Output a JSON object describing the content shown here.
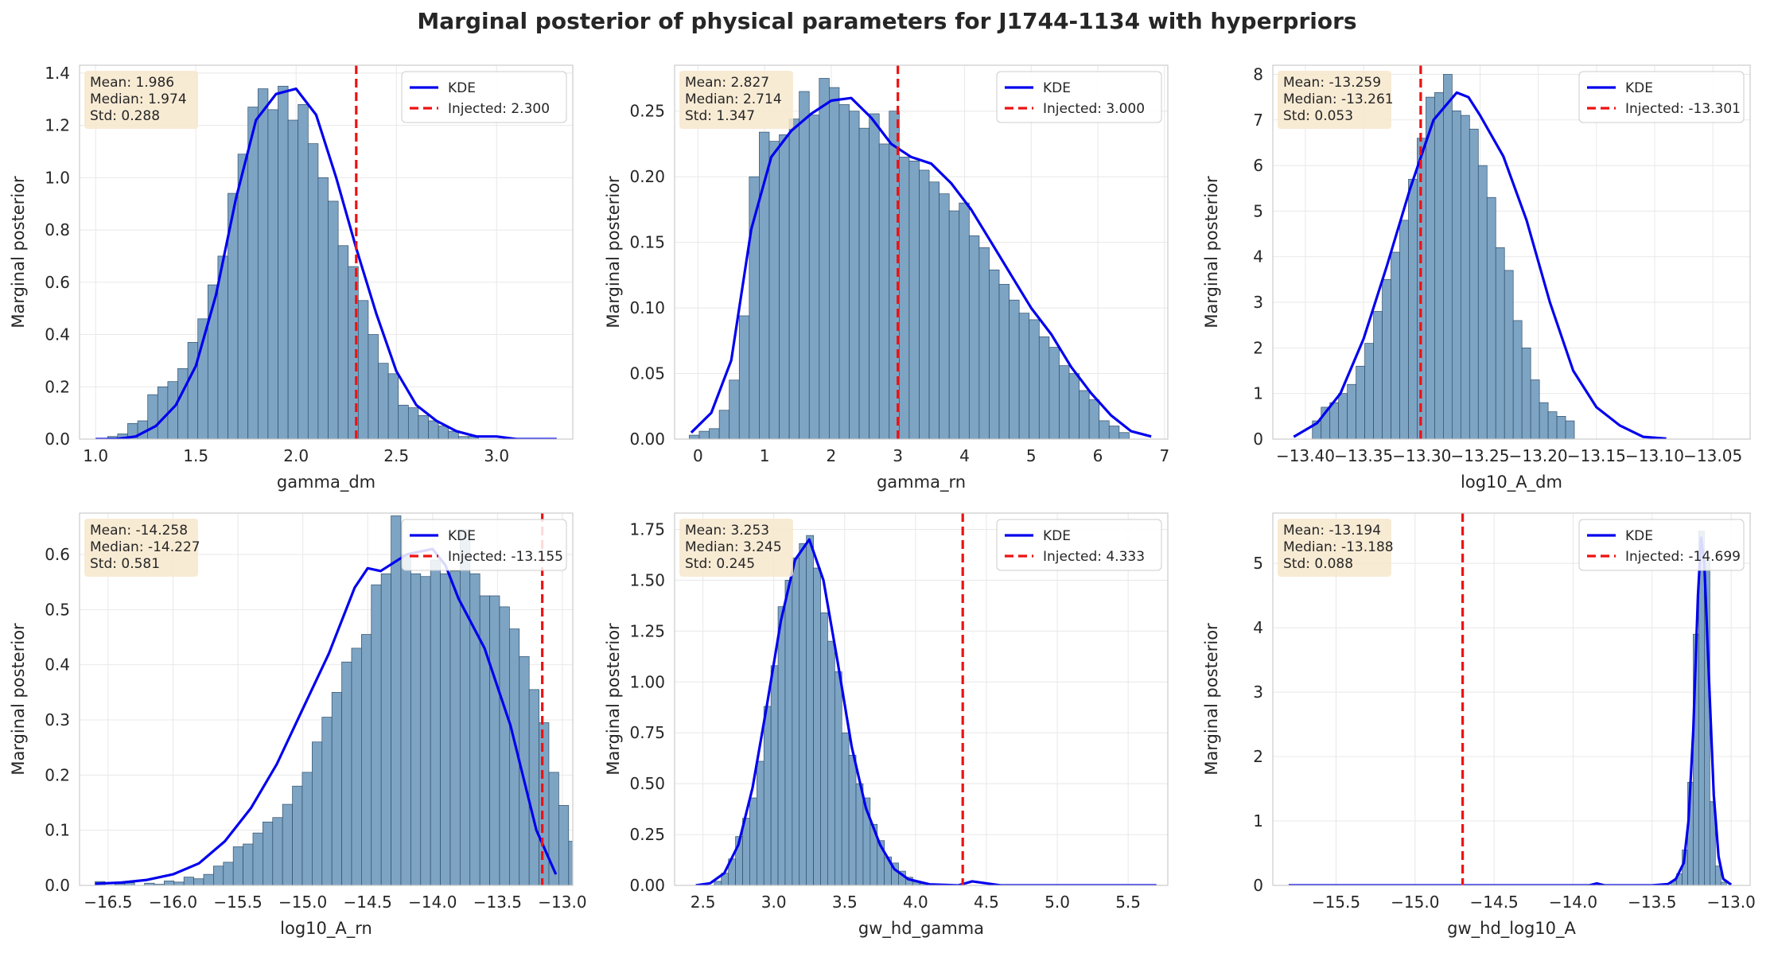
{
  "figure": {
    "title": "Marginal posterior of physical parameters for J1744-1134 with hyperpriors"
  },
  "style": {
    "hist_fill": "#7ea4c4",
    "hist_edge": "#2f4f6a",
    "kde_color": "#0000ee",
    "injected_color": "#ee1111",
    "stats_box_fill": "#f7e8cc"
  },
  "chart_data": [
    {
      "type": "bar",
      "title": "",
      "xlabel": "gamma_dm",
      "ylabel": "Marginal posterior",
      "xlim": [
        0.92,
        3.38
      ],
      "ylim": [
        0,
        1.43
      ],
      "xticks": [
        1.0,
        1.5,
        2.0,
        2.5,
        3.0
      ],
      "xtick_labels": [
        "1.0",
        "1.5",
        "2.0",
        "2.5",
        "3.0"
      ],
      "yticks": [
        0,
        0.2,
        0.4,
        0.6,
        0.8,
        1.0,
        1.2,
        1.4
      ],
      "ytick_labels": [
        "0.0",
        "0.2",
        "0.4",
        "0.6",
        "0.8",
        "1.0",
        "1.2",
        "1.4"
      ],
      "grid": true,
      "legend": "top-right",
      "legend_entries": [
        "KDE",
        "Injected: 2.300"
      ],
      "stats": [
        "Mean: 1.986",
        "Median: 1.974",
        "Std: 0.288"
      ],
      "injected": 2.3,
      "hist": {
        "start": 1.06,
        "width": 0.05,
        "values": [
          0.01,
          0.02,
          0.06,
          0.07,
          0.17,
          0.2,
          0.22,
          0.27,
          0.37,
          0.46,
          0.59,
          0.7,
          0.94,
          1.09,
          1.27,
          1.34,
          1.26,
          1.35,
          1.22,
          1.28,
          1.13,
          1.0,
          0.91,
          0.74,
          0.66,
          0.53,
          0.4,
          0.29,
          0.25,
          0.13,
          0.12,
          0.09,
          0.07,
          0.05,
          0.03,
          0.01,
          0.01
        ]
      },
      "kde": {
        "x": [
          1.0,
          1.1,
          1.2,
          1.3,
          1.4,
          1.5,
          1.6,
          1.7,
          1.8,
          1.9,
          2.0,
          2.1,
          2.2,
          2.3,
          2.4,
          2.5,
          2.6,
          2.7,
          2.8,
          2.9,
          3.0,
          3.1,
          3.2,
          3.3
        ],
        "y": [
          0.0,
          0.0,
          0.01,
          0.05,
          0.13,
          0.28,
          0.55,
          0.92,
          1.22,
          1.32,
          1.34,
          1.24,
          1.0,
          0.73,
          0.48,
          0.26,
          0.13,
          0.07,
          0.03,
          0.01,
          0.01,
          0.0,
          0.0,
          0.0
        ]
      }
    },
    {
      "type": "bar",
      "title": "",
      "xlabel": "gamma_rn",
      "ylabel": "Marginal posterior",
      "xlim": [
        -0.35,
        7.05
      ],
      "ylim": [
        0,
        0.285
      ],
      "xticks": [
        0,
        1,
        2,
        3,
        4,
        5,
        6,
        7
      ],
      "xtick_labels": [
        "0",
        "1",
        "2",
        "3",
        "4",
        "5",
        "6",
        "7"
      ],
      "yticks": [
        0,
        0.05,
        0.1,
        0.15,
        0.2,
        0.25
      ],
      "ytick_labels": [
        "0.00",
        "0.05",
        "0.10",
        "0.15",
        "0.20",
        "0.25"
      ],
      "grid": true,
      "legend": "top-right",
      "legend_entries": [
        "KDE",
        "Injected: 3.000"
      ],
      "stats": [
        "Mean: 2.827",
        "Median: 2.714",
        "Std: 1.347"
      ],
      "injected": 3.0,
      "hist": {
        "start": -0.13,
        "width": 0.15,
        "values": [
          0.003,
          0.006,
          0.008,
          0.022,
          0.045,
          0.094,
          0.2,
          0.234,
          0.227,
          0.232,
          0.244,
          0.265,
          0.247,
          0.275,
          0.268,
          0.255,
          0.25,
          0.237,
          0.248,
          0.225,
          0.25,
          0.215,
          0.212,
          0.205,
          0.196,
          0.187,
          0.174,
          0.18,
          0.155,
          0.146,
          0.129,
          0.118,
          0.106,
          0.096,
          0.091,
          0.078,
          0.07,
          0.056,
          0.05,
          0.037,
          0.03,
          0.014,
          0.01,
          0.005
        ]
      },
      "kde": {
        "x": [
          -0.1,
          0.2,
          0.5,
          0.8,
          1.1,
          1.4,
          1.7,
          2.0,
          2.3,
          2.6,
          2.9,
          3.2,
          3.5,
          3.8,
          4.1,
          4.4,
          4.7,
          5.0,
          5.3,
          5.6,
          5.9,
          6.2,
          6.5,
          6.8
        ],
        "y": [
          0.005,
          0.02,
          0.06,
          0.16,
          0.215,
          0.235,
          0.248,
          0.258,
          0.26,
          0.245,
          0.225,
          0.215,
          0.21,
          0.195,
          0.175,
          0.15,
          0.125,
          0.1,
          0.08,
          0.055,
          0.035,
          0.018,
          0.006,
          0.002
        ]
      }
    },
    {
      "type": "bar",
      "title": "",
      "xlabel": "log10_A_dm",
      "ylabel": "Marginal posterior",
      "xlim": [
        -13.428,
        -13.018
      ],
      "ylim": [
        0,
        8.2
      ],
      "xticks": [
        -13.4,
        -13.35,
        -13.3,
        -13.25,
        -13.2,
        -13.15,
        -13.1,
        -13.05
      ],
      "xtick_labels": [
        "−13.40",
        "−13.35",
        "−13.30",
        "−13.25",
        "−13.20",
        "−13.15",
        "−13.10",
        "−13.05"
      ],
      "yticks": [
        0,
        1,
        2,
        3,
        4,
        5,
        6,
        7,
        8
      ],
      "ytick_labels": [
        "0",
        "1",
        "2",
        "3",
        "4",
        "5",
        "6",
        "7",
        "8"
      ],
      "grid": true,
      "legend": "top-right",
      "legend_entries": [
        "KDE",
        "Injected: -13.301"
      ],
      "stats": [
        "Mean: -13.259",
        "Median: -13.261",
        "Std: 0.053"
      ],
      "injected": -13.301,
      "hist": {
        "start": -13.394,
        "width": 0.0075,
        "values": [
          0.4,
          0.7,
          0.8,
          1.0,
          1.2,
          1.6,
          2.1,
          2.8,
          3.5,
          4.1,
          4.8,
          5.7,
          6.6,
          7.5,
          7.6,
          8.0,
          7.2,
          7.1,
          6.8,
          6.0,
          5.3,
          4.2,
          3.7,
          2.6,
          2.0,
          1.3,
          0.8,
          0.6,
          0.5,
          0.4
        ]
      },
      "kde": {
        "x": [
          -13.41,
          -13.39,
          -13.37,
          -13.35,
          -13.33,
          -13.31,
          -13.29,
          -13.27,
          -13.26,
          -13.25,
          -13.23,
          -13.21,
          -13.19,
          -13.17,
          -13.15,
          -13.13,
          -13.11,
          -13.09
        ],
        "y": [
          0.05,
          0.35,
          1.0,
          2.2,
          3.8,
          5.5,
          7.0,
          7.6,
          7.5,
          7.1,
          6.2,
          4.8,
          3.0,
          1.5,
          0.7,
          0.3,
          0.05,
          0.01
        ]
      }
    },
    {
      "type": "bar",
      "title": "",
      "xlabel": "log10_A_rn",
      "ylabel": "Marginal posterior",
      "xlim": [
        -16.72,
        -12.92
      ],
      "ylim": [
        0,
        0.675
      ],
      "xticks": [
        -16.5,
        -16.0,
        -15.5,
        -15.0,
        -14.5,
        -14.0,
        -13.5,
        -13.0
      ],
      "xtick_labels": [
        "−16.5",
        "−16.0",
        "−15.5",
        "−15.0",
        "−14.5",
        "−14.0",
        "−13.5",
        "−13.0"
      ],
      "yticks": [
        0,
        0.1,
        0.2,
        0.3,
        0.4,
        0.5,
        0.6
      ],
      "ytick_labels": [
        "0.0",
        "0.1",
        "0.2",
        "0.3",
        "0.4",
        "0.5",
        "0.6"
      ],
      "grid": true,
      "legend": "top-right",
      "legend_entries": [
        "KDE",
        "Injected: -13.155"
      ],
      "stats": [
        "Mean: -14.258",
        "Median: -14.227",
        "Std: 0.581"
      ],
      "injected": -13.155,
      "hist": {
        "start": -16.6,
        "width": 0.076,
        "values": [
          0.007,
          0.0,
          0.003,
          0.005,
          0.0,
          0.004,
          0.002,
          0.008,
          0.006,
          0.015,
          0.012,
          0.02,
          0.035,
          0.042,
          0.07,
          0.075,
          0.095,
          0.115,
          0.123,
          0.147,
          0.18,
          0.205,
          0.26,
          0.305,
          0.35,
          0.405,
          0.43,
          0.455,
          0.545,
          0.565,
          0.67,
          0.6,
          0.565,
          0.56,
          0.59,
          0.565,
          0.57,
          0.645,
          0.565,
          0.525,
          0.525,
          0.505,
          0.465,
          0.415,
          0.355,
          0.295,
          0.205,
          0.145,
          0.08,
          0.025
        ]
      },
      "kde": {
        "x": [
          -16.6,
          -16.4,
          -16.2,
          -16.0,
          -15.8,
          -15.6,
          -15.4,
          -15.2,
          -15.0,
          -14.8,
          -14.6,
          -14.5,
          -14.4,
          -14.2,
          -14.0,
          -13.9,
          -13.8,
          -13.6,
          -13.4,
          -13.2,
          -13.05
        ],
        "y": [
          0.003,
          0.005,
          0.01,
          0.02,
          0.04,
          0.08,
          0.14,
          0.22,
          0.32,
          0.42,
          0.54,
          0.575,
          0.57,
          0.6,
          0.61,
          0.58,
          0.52,
          0.43,
          0.29,
          0.1,
          0.02
        ]
      }
    },
    {
      "type": "bar",
      "title": "",
      "xlabel": "gw_hd_gamma",
      "ylabel": "Marginal posterior",
      "xlim": [
        2.3,
        5.78
      ],
      "ylim": [
        0,
        1.83
      ],
      "xticks": [
        2.5,
        3.0,
        3.5,
        4.0,
        4.5,
        5.0,
        5.5
      ],
      "xtick_labels": [
        "2.5",
        "3.0",
        "3.5",
        "4.0",
        "4.5",
        "5.0",
        "5.5"
      ],
      "yticks": [
        0,
        0.25,
        0.5,
        0.75,
        1.0,
        1.25,
        1.5,
        1.75
      ],
      "ytick_labels": [
        "0.00",
        "0.25",
        "0.50",
        "0.75",
        "1.00",
        "1.25",
        "1.50",
        "1.75"
      ],
      "grid": true,
      "legend": "top-right",
      "legend_entries": [
        "KDE",
        "Injected: 4.333"
      ],
      "stats": [
        "Mean: 3.253",
        "Median: 3.245",
        "Std: 0.245"
      ],
      "injected": 4.333,
      "hist": {
        "start": 2.58,
        "width": 0.05,
        "values": [
          0.02,
          0.06,
          0.13,
          0.24,
          0.33,
          0.43,
          0.61,
          0.88,
          1.08,
          1.37,
          1.5,
          1.61,
          1.68,
          1.72,
          1.56,
          1.34,
          1.2,
          1.05,
          0.75,
          0.64,
          0.5,
          0.43,
          0.3,
          0.22,
          0.14,
          0.11,
          0.07,
          0.04,
          0.02,
          0.01
        ]
      },
      "kde": {
        "x": [
          2.45,
          2.55,
          2.65,
          2.75,
          2.85,
          2.95,
          3.05,
          3.15,
          3.25,
          3.35,
          3.45,
          3.55,
          3.65,
          3.75,
          3.85,
          3.95,
          4.1,
          4.3,
          4.4,
          4.5,
          4.6,
          4.8,
          5.2,
          5.7
        ],
        "y": [
          0.0,
          0.01,
          0.06,
          0.2,
          0.48,
          0.88,
          1.3,
          1.6,
          1.7,
          1.5,
          1.1,
          0.68,
          0.38,
          0.2,
          0.08,
          0.03,
          0.005,
          0.0,
          0.02,
          0.01,
          0.0,
          0.0,
          0.0,
          0.0
        ]
      }
    },
    {
      "type": "bar",
      "title": "",
      "xlabel": "gw_hd_log10_A",
      "ylabel": "Marginal posterior",
      "xlim": [
        -15.9,
        -12.88
      ],
      "ylim": [
        0,
        5.78
      ],
      "xticks": [
        -15.5,
        -15.0,
        -14.5,
        -14.0,
        -13.5,
        -13.0
      ],
      "xtick_labels": [
        "−15.5",
        "−15.0",
        "−14.5",
        "−14.0",
        "−13.5",
        "−13.0"
      ],
      "yticks": [
        0,
        1,
        2,
        3,
        4,
        5
      ],
      "ytick_labels": [
        "0",
        "1",
        "2",
        "3",
        "4",
        "5"
      ],
      "grid": true,
      "legend": "top-right",
      "legend_entries": [
        "KDE",
        "Injected: -14.699"
      ],
      "stats": [
        "Mean: -13.194",
        "Median: -13.188",
        "Std: 0.088"
      ],
      "injected": -14.699,
      "hist": {
        "start": -13.38,
        "width": 0.035,
        "values": [
          0.07,
          0.18,
          0.55,
          1.6,
          3.9,
          5.5,
          5.05,
          1.3,
          0.3,
          0.05
        ]
      },
      "kde": {
        "x": [
          -15.8,
          -15.0,
          -14.4,
          -13.9,
          -13.85,
          -13.8,
          -13.5,
          -13.4,
          -13.35,
          -13.3,
          -13.27,
          -13.24,
          -13.21,
          -13.19,
          -13.17,
          -13.14,
          -13.11,
          -13.08,
          -13.05,
          -13.0
        ],
        "y": [
          0.0,
          0.0,
          0.0,
          0.0,
          0.03,
          0.0,
          0.0,
          0.02,
          0.1,
          0.35,
          1.0,
          2.4,
          4.5,
          5.4,
          5.0,
          3.2,
          1.4,
          0.45,
          0.1,
          0.01
        ]
      }
    }
  ]
}
